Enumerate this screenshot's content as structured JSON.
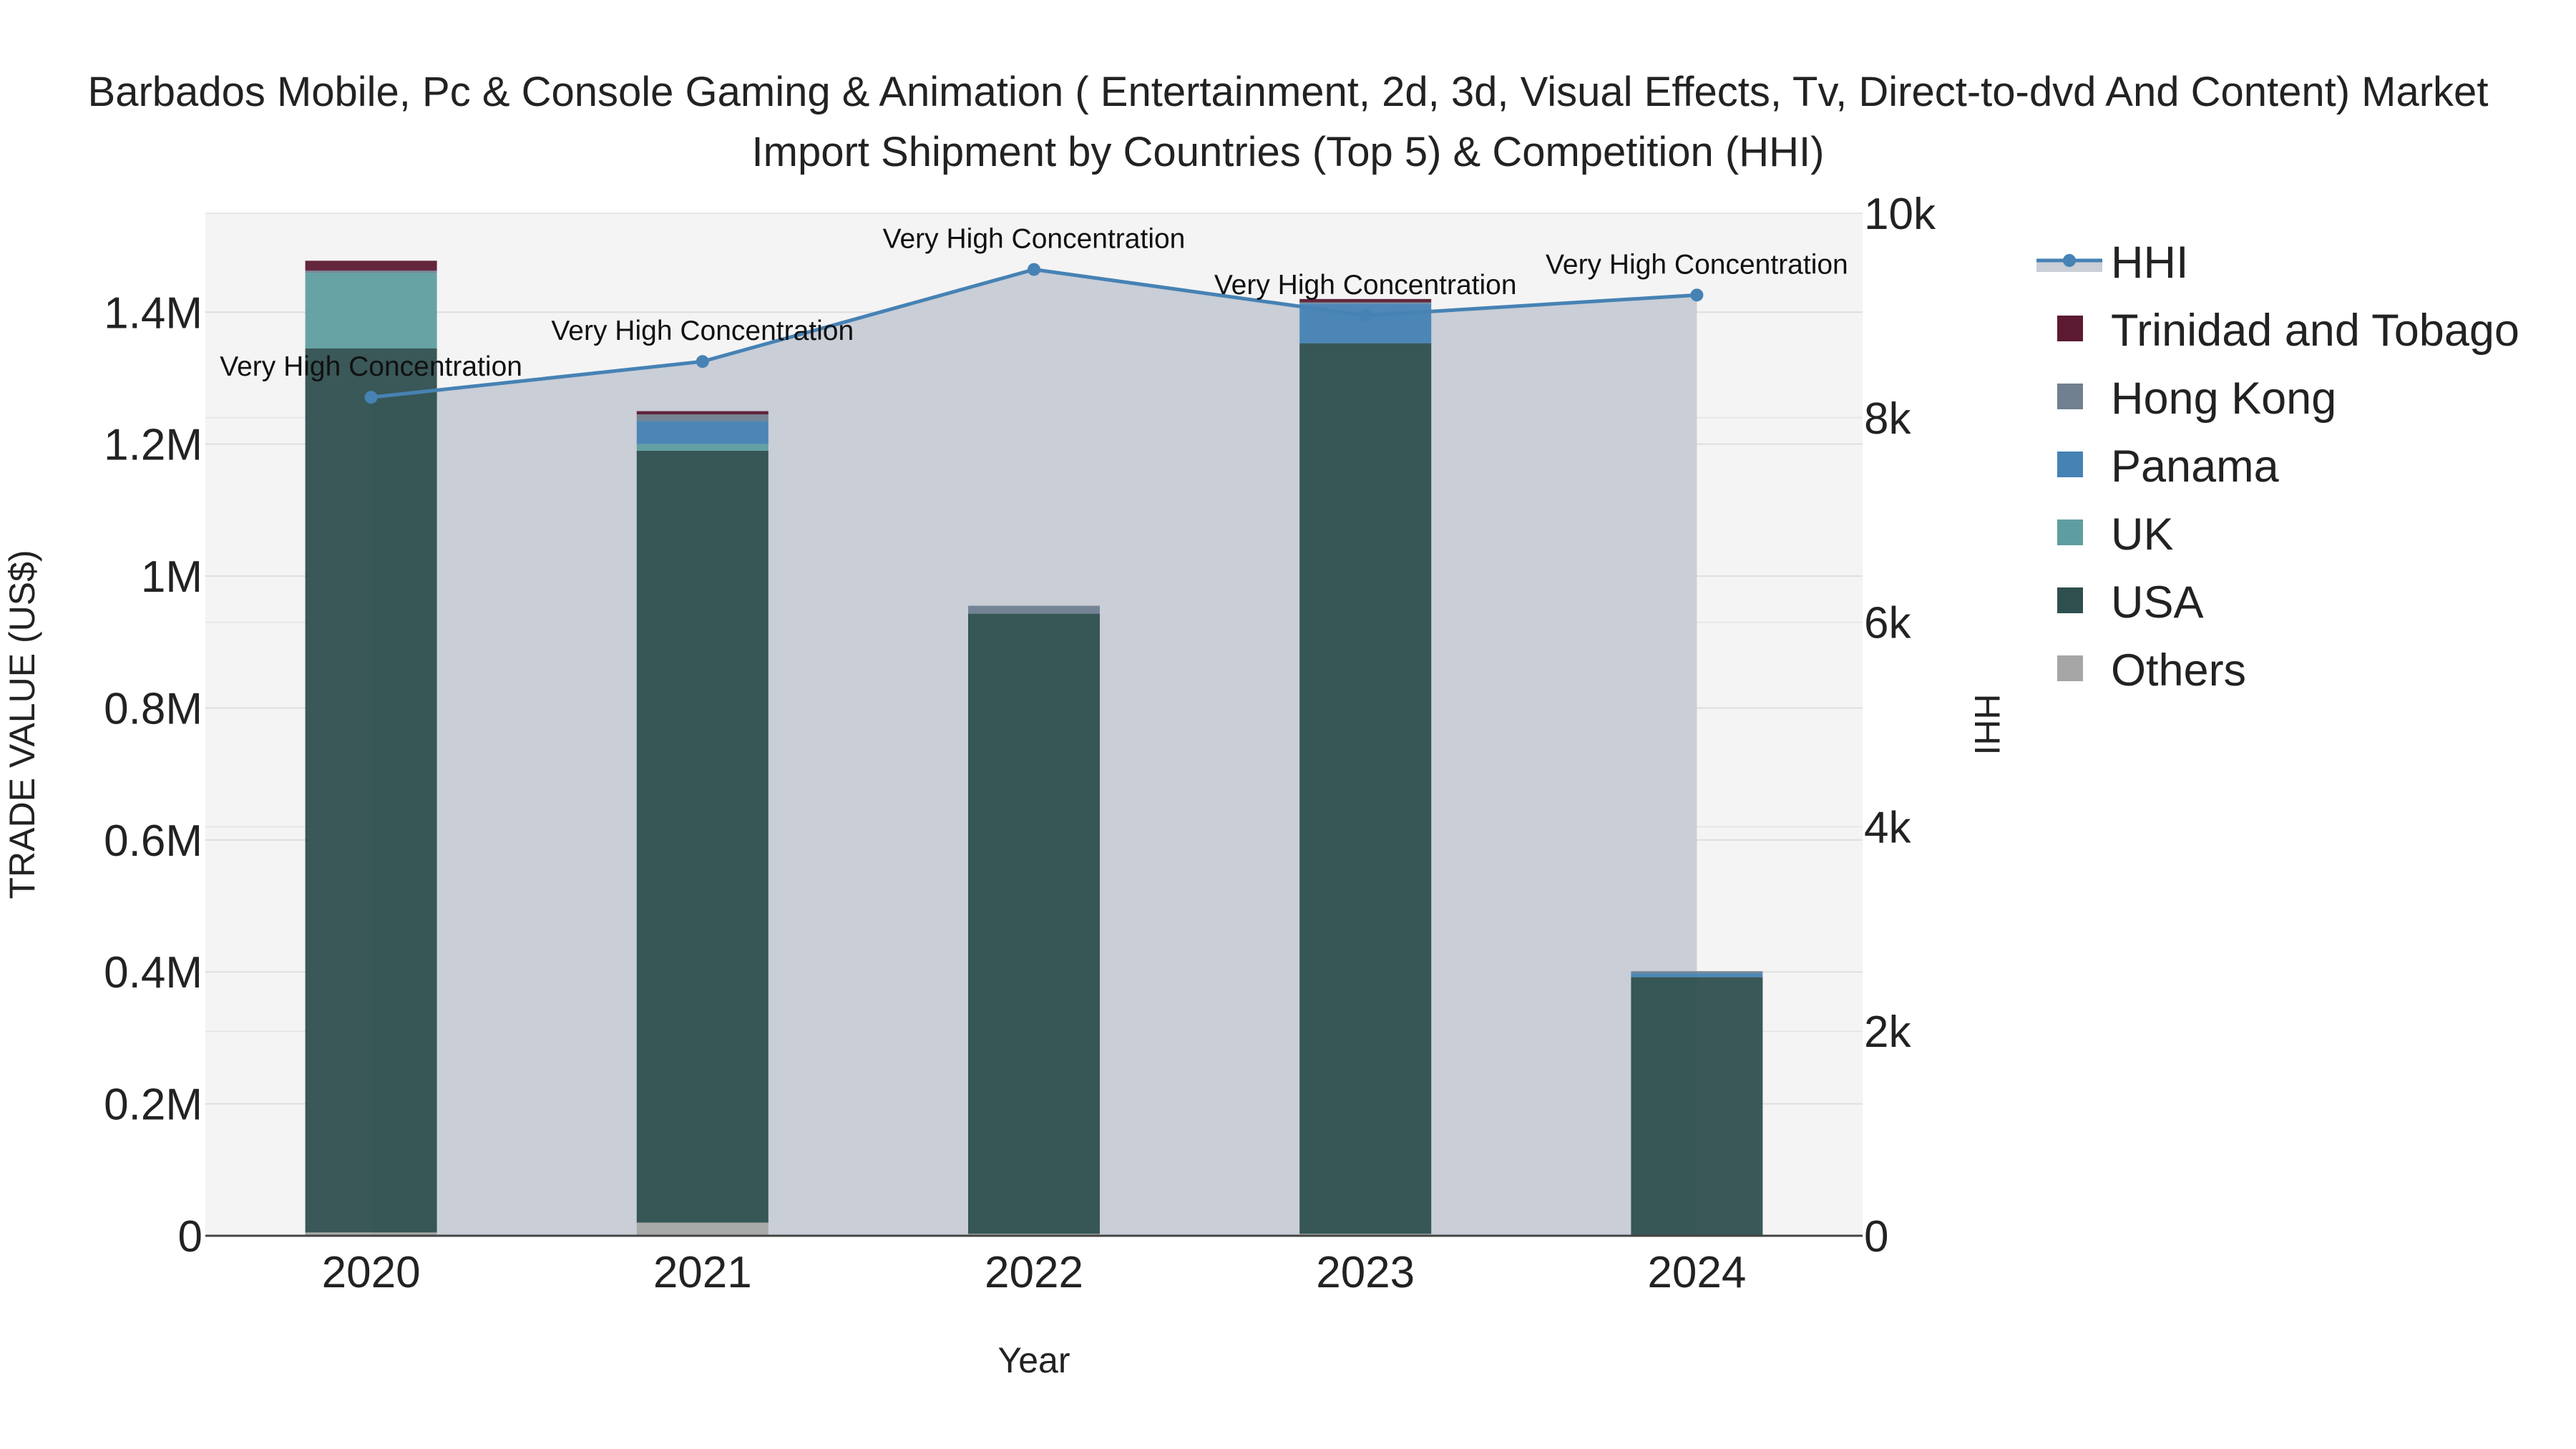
{
  "chart_data": {
    "type": "bar",
    "title_lines": [
      "Barbados Mobile, Pc & Console Gaming & Animation ( Entertainment, 2d, 3d, Visual Effects, Tv, Direct-to-dvd And Content) Market",
      "Import Shipment by Countries (Top 5) & Competition (HHI)"
    ],
    "xlabel": "Year",
    "ylabel": "TRADE VALUE (US$)",
    "y2label": "HHI",
    "categories": [
      "2020",
      "2021",
      "2022",
      "2023",
      "2024"
    ],
    "ylim": [
      0,
      1550000
    ],
    "y2lim": [
      0,
      10000
    ],
    "y_ticks": [
      0,
      200000,
      400000,
      600000,
      800000,
      1000000,
      1200000,
      1400000
    ],
    "y_tick_labels": [
      "0",
      "0.2M",
      "0.4M",
      "0.6M",
      "0.8M",
      "1M",
      "1.2M",
      "1.4M"
    ],
    "y2_ticks": [
      0,
      2000,
      4000,
      6000,
      8000,
      10000
    ],
    "y2_tick_labels": [
      "0",
      "2k",
      "4k",
      "6k",
      "8k",
      "10k"
    ],
    "series": [
      {
        "name": "Others",
        "color": "#a6a6a6",
        "values": [
          5000,
          20000,
          3000,
          3000,
          0
        ]
      },
      {
        "name": "USA",
        "color": "#2f4f4f",
        "values": [
          1340000,
          1170000,
          940000,
          1350000,
          392000
        ]
      },
      {
        "name": "UK",
        "color": "#5f9ea0",
        "values": [
          115000,
          10000,
          0,
          0,
          0
        ]
      },
      {
        "name": "Panama",
        "color": "#4682b4",
        "values": [
          0,
          35000,
          0,
          60000,
          6000
        ]
      },
      {
        "name": "Hong Kong",
        "color": "#708090",
        "values": [
          3000,
          10000,
          12000,
          2000,
          3000
        ]
      },
      {
        "name": "Trinidad and Tobago",
        "color": "#5c1a33",
        "values": [
          15000,
          5000,
          0,
          5000,
          0
        ]
      }
    ],
    "hhi": {
      "name": "HHI",
      "color": "#4682b4",
      "values": [
        8200,
        8550,
        9450,
        9000,
        9200
      ],
      "annotations": [
        "Very High Concentration",
        "Very High Concentration",
        "Very High Concentration",
        "Very High Concentration",
        "Very High Concentration"
      ]
    },
    "legend": [
      "HHI",
      "Trinidad and Tobago",
      "Hong Kong",
      "Panama",
      "UK",
      "USA",
      "Others"
    ],
    "legend_position": "right"
  }
}
